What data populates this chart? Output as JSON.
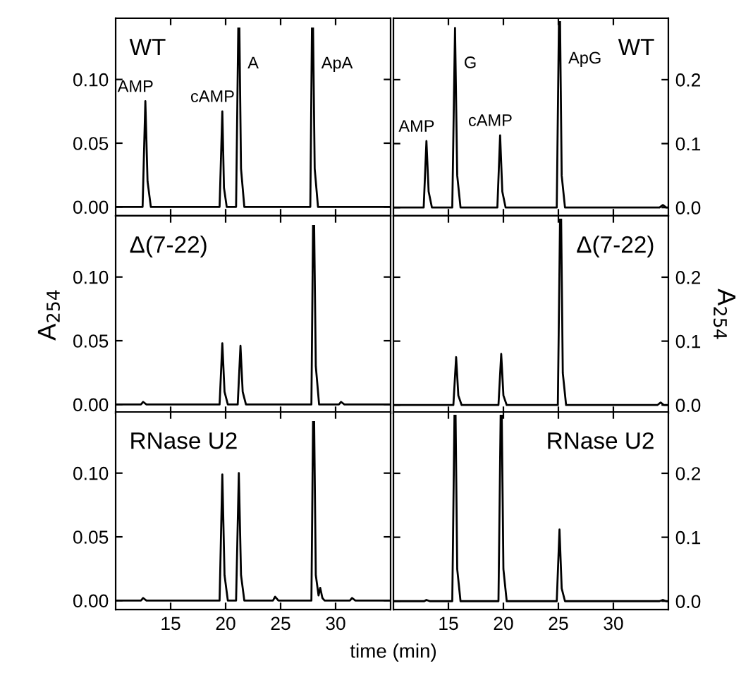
{
  "chart_data": [
    {
      "type": "line",
      "xlim": [
        10,
        35
      ],
      "xticks": [
        15,
        20,
        25,
        30
      ],
      "ylim": [
        -0.007,
        0.148
      ],
      "yticks": [
        {
          "value": 0,
          "label": "0.00"
        },
        {
          "value": 0.05,
          "label": "0.05"
        },
        {
          "value": 0.1,
          "label": "0.10"
        }
      ],
      "tick_labels": "y",
      "grid": false,
      "legend": false,
      "annotations": [
        "WT",
        {
          "text": "AMP",
          "x": 12.7,
          "y": 0.083
        },
        {
          "text": "cAMP",
          "x": 19.7,
          "y": 0.075
        },
        {
          "text": "A",
          "x": 21.2,
          "y": 0.14
        },
        {
          "text": "ApA",
          "x": 27.9,
          "y": 0.14
        }
      ],
      "series": [
        {
          "color": "#000000",
          "x": [
            10,
            12.45,
            12.7,
            12.9,
            13.2,
            19.45,
            19.7,
            19.85,
            20.1,
            20.95,
            21.15,
            21.2,
            21.25,
            21.4,
            21.7,
            27.7,
            27.85,
            27.9,
            27.95,
            28.1,
            28.4,
            35
          ],
          "values": [
            0,
            0,
            0.083,
            0.02,
            0,
            0,
            0.075,
            0.015,
            0,
            0,
            0.14,
            null,
            0.14,
            0.03,
            0,
            0,
            0.14,
            null,
            0.14,
            0.03,
            0,
            0
          ]
        }
      ]
    },
    {
      "type": "line",
      "xlim": [
        10,
        35
      ],
      "xticks": [
        15,
        20,
        25,
        30
      ],
      "ylim": [
        -0.013,
        0.296
      ],
      "yticks": [
        {
          "value": 0,
          "label": "0.0"
        },
        {
          "value": 0.1,
          "label": "0.1"
        },
        {
          "value": 0.2,
          "label": "0.2"
        }
      ],
      "tick_labels": "y",
      "grid": false,
      "legend": false,
      "annotations": [
        "WT",
        {
          "text": "AMP",
          "x": 13.0,
          "y": 0.104
        },
        {
          "text": "G",
          "x": 15.6,
          "y": 0.281
        },
        {
          "text": "cAMP",
          "x": 19.7,
          "y": 0.113
        },
        {
          "text": "ApG",
          "x": 25.1,
          "y": 0.29
        }
      ],
      "series": [
        {
          "color": "#000000",
          "x": [
            10,
            12.75,
            13.0,
            13.2,
            13.5,
            15.35,
            15.6,
            15.8,
            16.1,
            19.45,
            19.7,
            19.9,
            20.2,
            24.85,
            25.05,
            25.1,
            25.15,
            25.3,
            25.6,
            34.2,
            34.5,
            34.8,
            35
          ],
          "values": [
            0,
            0,
            0.104,
            0.025,
            0,
            0,
            0.281,
            0.05,
            0,
            0,
            0.113,
            0.025,
            0,
            0,
            0.29,
            null,
            0.29,
            0.05,
            0,
            0,
            0.004,
            0,
            0
          ]
        }
      ]
    },
    {
      "type": "line",
      "xlim": [
        10,
        35
      ],
      "xticks": [
        15,
        20,
        25,
        30
      ],
      "ylim": [
        -0.007,
        0.148
      ],
      "yticks": [
        {
          "value": 0,
          "label": "0.00"
        },
        {
          "value": 0.05,
          "label": "0.05"
        },
        {
          "value": 0.1,
          "label": "0.10"
        }
      ],
      "tick_labels": "y",
      "grid": false,
      "legend": false,
      "ylabel": "A$_{254}$",
      "annotations": [
        "Δ(7-22)"
      ],
      "series": [
        {
          "color": "#000000",
          "x": [
            10,
            12.3,
            12.5,
            12.8,
            19.45,
            19.7,
            19.9,
            20.2,
            21.1,
            21.35,
            21.55,
            21.85,
            27.8,
            27.95,
            28.0,
            28.05,
            28.2,
            28.5,
            30.3,
            30.5,
            30.8,
            35
          ],
          "values": [
            0,
            0,
            0.002,
            0,
            0,
            0.048,
            0.01,
            0,
            0,
            0.046,
            0.01,
            0,
            0,
            0.14,
            null,
            0.14,
            0.03,
            0,
            0,
            0.002,
            0,
            0
          ]
        }
      ]
    },
    {
      "type": "line",
      "xlim": [
        10,
        35
      ],
      "xticks": [
        15,
        20,
        25,
        30
      ],
      "ylim": [
        -0.013,
        0.296
      ],
      "yticks": [
        {
          "value": 0,
          "label": "0.0"
        },
        {
          "value": 0.1,
          "label": "0.1"
        },
        {
          "value": 0.2,
          "label": "0.2"
        }
      ],
      "tick_labels": "y",
      "grid": false,
      "legend": false,
      "ylabel": "A$_{254}$",
      "annotations": [
        "Δ(7-22)"
      ],
      "series": [
        {
          "color": "#000000",
          "x": [
            10,
            15.45,
            15.7,
            15.9,
            16.2,
            19.55,
            19.8,
            20.0,
            20.3,
            24.95,
            25.15,
            25.2,
            25.25,
            25.4,
            25.7,
            34.0,
            34.3,
            34.6,
            35
          ],
          "values": [
            0,
            0,
            0.075,
            0.015,
            0,
            0,
            0.08,
            0.015,
            0,
            0,
            0.29,
            null,
            0.29,
            0.05,
            0,
            0,
            0.004,
            0,
            0
          ]
        }
      ]
    },
    {
      "type": "line",
      "xlim": [
        10,
        35
      ],
      "xticks": [
        15,
        20,
        25,
        30
      ],
      "ylim": [
        -0.007,
        0.148
      ],
      "yticks": [
        {
          "value": 0,
          "label": "0.00"
        },
        {
          "value": 0.05,
          "label": "0.05"
        },
        {
          "value": 0.1,
          "label": "0.10"
        }
      ],
      "grid": false,
      "legend": false,
      "xlabel": "time (min)",
      "annotations": [
        "RNase U2"
      ],
      "series": [
        {
          "color": "#000000",
          "x": [
            10,
            12.3,
            12.5,
            12.8,
            19.45,
            19.7,
            19.9,
            20.2,
            20.95,
            21.2,
            21.4,
            21.7,
            24.3,
            24.5,
            24.8,
            27.8,
            27.95,
            28.0,
            28.05,
            28.2,
            28.45,
            28.6,
            28.8,
            29.0,
            31.3,
            31.5,
            31.8,
            35
          ],
          "values": [
            0,
            0,
            0.002,
            0,
            0,
            0.099,
            0.02,
            0,
            0,
            0.1,
            0.02,
            0,
            0,
            0.003,
            0,
            0,
            0.14,
            null,
            0.14,
            0.02,
            0.004,
            0.01,
            0.002,
            0,
            0,
            0.002,
            0,
            0
          ]
        }
      ]
    },
    {
      "type": "line",
      "xlim": [
        10,
        35
      ],
      "xticks": [
        15,
        20,
        25,
        30
      ],
      "ylim": [
        -0.013,
        0.296
      ],
      "yticks": [
        {
          "value": 0,
          "label": "0.0"
        },
        {
          "value": 0.1,
          "label": "0.1"
        },
        {
          "value": 0.2,
          "label": "0.2"
        }
      ],
      "grid": false,
      "legend": false,
      "annotations": [
        "RNase U2"
      ],
      "series": [
        {
          "color": "#000000",
          "x": [
            10,
            12.8,
            13.0,
            13.3,
            15.35,
            15.55,
            15.6,
            15.65,
            15.8,
            16.1,
            19.55,
            19.75,
            19.8,
            19.85,
            20.0,
            20.3,
            24.85,
            25.1,
            25.3,
            25.6,
            34.2,
            34.5,
            34.8,
            35
          ],
          "values": [
            0,
            0,
            0.002,
            0,
            0,
            0.29,
            null,
            0.29,
            0.05,
            0,
            0,
            0.29,
            null,
            0.29,
            0.05,
            0,
            0,
            0.112,
            0.02,
            0,
            0,
            0.002,
            0,
            0
          ]
        }
      ]
    }
  ]
}
